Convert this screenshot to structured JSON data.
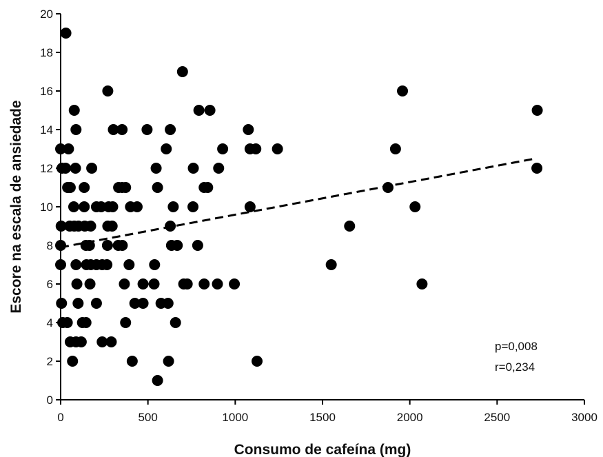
{
  "chart_data": {
    "type": "scatter",
    "title": "",
    "xlabel": "Consumo de cafeína (mg)",
    "ylabel": "Escore na escala de ansiedade",
    "xlim": [
      0,
      3000
    ],
    "ylim": [
      0,
      20
    ],
    "xticks": [
      "0",
      "500",
      "1000",
      "1500",
      "2000",
      "2500",
      "3000"
    ],
    "yticks": [
      "0",
      "2",
      "4",
      "6",
      "8",
      "10",
      "12",
      "14",
      "16",
      "18",
      "20"
    ],
    "grid": false,
    "trendline": {
      "style": "dashed",
      "x": [
        0,
        2720
      ],
      "y": [
        7.9,
        12.5
      ]
    },
    "annotations": [
      "p=0,008",
      "r=0,234"
    ],
    "points": [
      [
        30,
        19
      ],
      [
        698,
        17
      ],
      [
        270,
        16
      ],
      [
        1958,
        16
      ],
      [
        78,
        15
      ],
      [
        792,
        15
      ],
      [
        855,
        15
      ],
      [
        2730,
        15
      ],
      [
        88,
        14
      ],
      [
        302,
        14
      ],
      [
        352,
        14
      ],
      [
        495,
        14
      ],
      [
        628,
        14
      ],
      [
        1075,
        14
      ],
      [
        0,
        13
      ],
      [
        45,
        13
      ],
      [
        605,
        13
      ],
      [
        928,
        13
      ],
      [
        1085,
        13
      ],
      [
        1118,
        13
      ],
      [
        1242,
        13
      ],
      [
        1918,
        13
      ],
      [
        8,
        12
      ],
      [
        28,
        12
      ],
      [
        85,
        12
      ],
      [
        178,
        12
      ],
      [
        547,
        12
      ],
      [
        760,
        12
      ],
      [
        905,
        12
      ],
      [
        2728,
        12
      ],
      [
        40,
        11
      ],
      [
        55,
        11
      ],
      [
        135,
        11
      ],
      [
        332,
        11
      ],
      [
        352,
        11
      ],
      [
        372,
        11
      ],
      [
        555,
        11
      ],
      [
        822,
        11
      ],
      [
        842,
        11
      ],
      [
        1875,
        11
      ],
      [
        75,
        10
      ],
      [
        135,
        10
      ],
      [
        205,
        10
      ],
      [
        232,
        10
      ],
      [
        275,
        10
      ],
      [
        298,
        10
      ],
      [
        400,
        10
      ],
      [
        438,
        10
      ],
      [
        645,
        10
      ],
      [
        758,
        10
      ],
      [
        1085,
        10
      ],
      [
        2030,
        10
      ],
      [
        3,
        9
      ],
      [
        52,
        9
      ],
      [
        78,
        9
      ],
      [
        102,
        9
      ],
      [
        138,
        9
      ],
      [
        172,
        9
      ],
      [
        270,
        9
      ],
      [
        295,
        9
      ],
      [
        628,
        9
      ],
      [
        1655,
        9
      ],
      [
        0,
        8
      ],
      [
        145,
        8
      ],
      [
        165,
        8
      ],
      [
        268,
        8
      ],
      [
        330,
        8
      ],
      [
        353,
        8
      ],
      [
        635,
        8
      ],
      [
        668,
        8
      ],
      [
        785,
        8
      ],
      [
        0,
        7
      ],
      [
        88,
        7
      ],
      [
        148,
        7
      ],
      [
        172,
        7
      ],
      [
        205,
        7
      ],
      [
        238,
        7
      ],
      [
        265,
        7
      ],
      [
        392,
        7
      ],
      [
        538,
        7
      ],
      [
        1550,
        7
      ],
      [
        93,
        6
      ],
      [
        168,
        6
      ],
      [
        365,
        6
      ],
      [
        472,
        6
      ],
      [
        535,
        6
      ],
      [
        705,
        6
      ],
      [
        725,
        6
      ],
      [
        822,
        6
      ],
      [
        898,
        6
      ],
      [
        995,
        6
      ],
      [
        2070,
        6
      ],
      [
        5,
        5
      ],
      [
        100,
        5
      ],
      [
        205,
        5
      ],
      [
        425,
        5
      ],
      [
        472,
        5
      ],
      [
        575,
        5
      ],
      [
        615,
        5
      ],
      [
        12,
        4
      ],
      [
        38,
        4
      ],
      [
        125,
        4
      ],
      [
        145,
        4
      ],
      [
        372,
        4
      ],
      [
        658,
        4
      ],
      [
        55,
        3
      ],
      [
        88,
        3
      ],
      [
        118,
        3
      ],
      [
        238,
        3
      ],
      [
        290,
        3
      ],
      [
        68,
        2
      ],
      [
        410,
        2
      ],
      [
        618,
        2
      ],
      [
        1125,
        2
      ],
      [
        555,
        1
      ]
    ]
  }
}
